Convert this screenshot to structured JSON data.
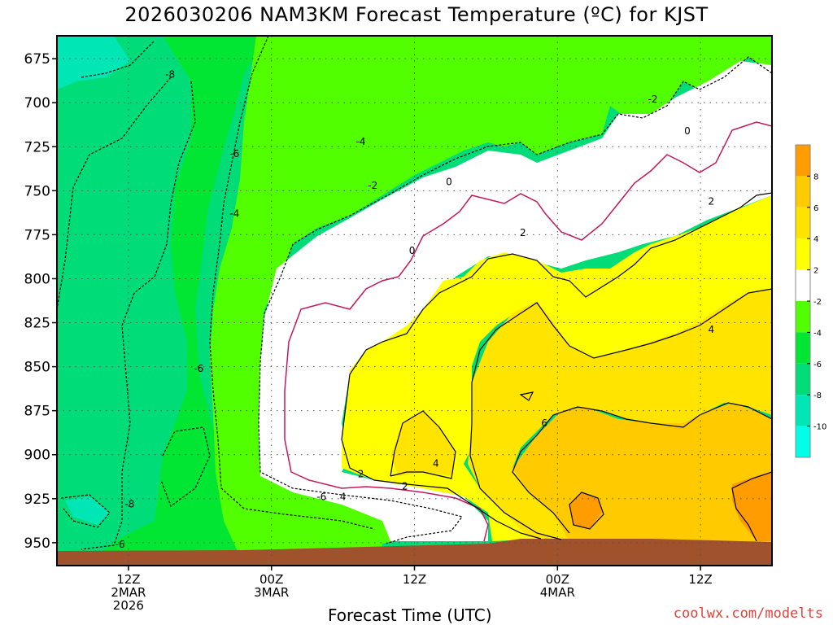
{
  "title": "2026030206 NAM3KM Forecast Temperature (ºC) for KJST",
  "credit": "coolwx.com/modelts",
  "chart_data": {
    "type": "heatmap",
    "title": "2026030206 NAM3KM Forecast Temperature (ºC) for KJST",
    "xlabel": "Forecast Time (UTC)",
    "ylabel": "",
    "y_axis": {
      "ticks": [
        675,
        700,
        725,
        750,
        775,
        800,
        825,
        850,
        875,
        900,
        925,
        950
      ],
      "range": [
        662,
        963
      ],
      "inverted": true
    },
    "x_axis": {
      "range_hours": [
        6,
        66
      ],
      "ticks": [
        {
          "hour": 12,
          "lines": [
            "12Z",
            "2MAR",
            "2026"
          ]
        },
        {
          "hour": 24,
          "lines": [
            "00Z",
            "3MAR"
          ]
        },
        {
          "hour": 36,
          "lines": [
            "12Z"
          ]
        },
        {
          "hour": 48,
          "lines": [
            "00Z",
            "4MAR"
          ]
        },
        {
          "hour": 60,
          "lines": [
            "12Z"
          ]
        }
      ]
    },
    "grid": true,
    "legend": {
      "placement": "right",
      "levels": [
        8,
        6,
        4,
        2,
        -2,
        -4,
        -6,
        -8,
        -10
      ],
      "colors": [
        "#ff9c00",
        "#ffcb00",
        "#ffe400",
        "#ffff00",
        "#ffffff",
        "#52ff00",
        "#00e633",
        "#00dc78",
        "#00e6b4",
        "#00ffe6"
      ]
    },
    "contour_labels": [
      {
        "text": "-8",
        "hour": 15.5,
        "p": 684
      },
      {
        "text": "-6",
        "hour": 20.9,
        "p": 729
      },
      {
        "text": "-4",
        "hour": 20.9,
        "p": 763
      },
      {
        "text": "-4",
        "hour": 31.5,
        "p": 722
      },
      {
        "text": "-2",
        "hour": 32.5,
        "p": 747
      },
      {
        "text": "0",
        "hour": 38.9,
        "p": 745
      },
      {
        "text": "0",
        "hour": 35.8,
        "p": 784
      },
      {
        "text": "-2",
        "hour": 56.0,
        "p": 698
      },
      {
        "text": "0",
        "hour": 58.9,
        "p": 716
      },
      {
        "text": "2",
        "hour": 45.1,
        "p": 774
      },
      {
        "text": "2",
        "hour": 60.9,
        "p": 756
      },
      {
        "text": "4",
        "hour": 60.9,
        "p": 829
      },
      {
        "text": "6",
        "hour": 46.9,
        "p": 882
      },
      {
        "text": "-6",
        "hour": 17.9,
        "p": 851
      },
      {
        "text": "-8",
        "hour": 12.1,
        "p": 928
      },
      {
        "text": "-6",
        "hour": 11.3,
        "p": 951
      },
      {
        "text": "-6",
        "hour": 28.2,
        "p": 924
      },
      {
        "text": "4",
        "hour": 30.0,
        "p": 924
      },
      {
        "text": "2",
        "hour": 31.5,
        "p": 911
      },
      {
        "text": "2",
        "hour": 35.2,
        "p": 918
      },
      {
        "text": "4",
        "hour": 37.8,
        "p": 905
      }
    ]
  }
}
